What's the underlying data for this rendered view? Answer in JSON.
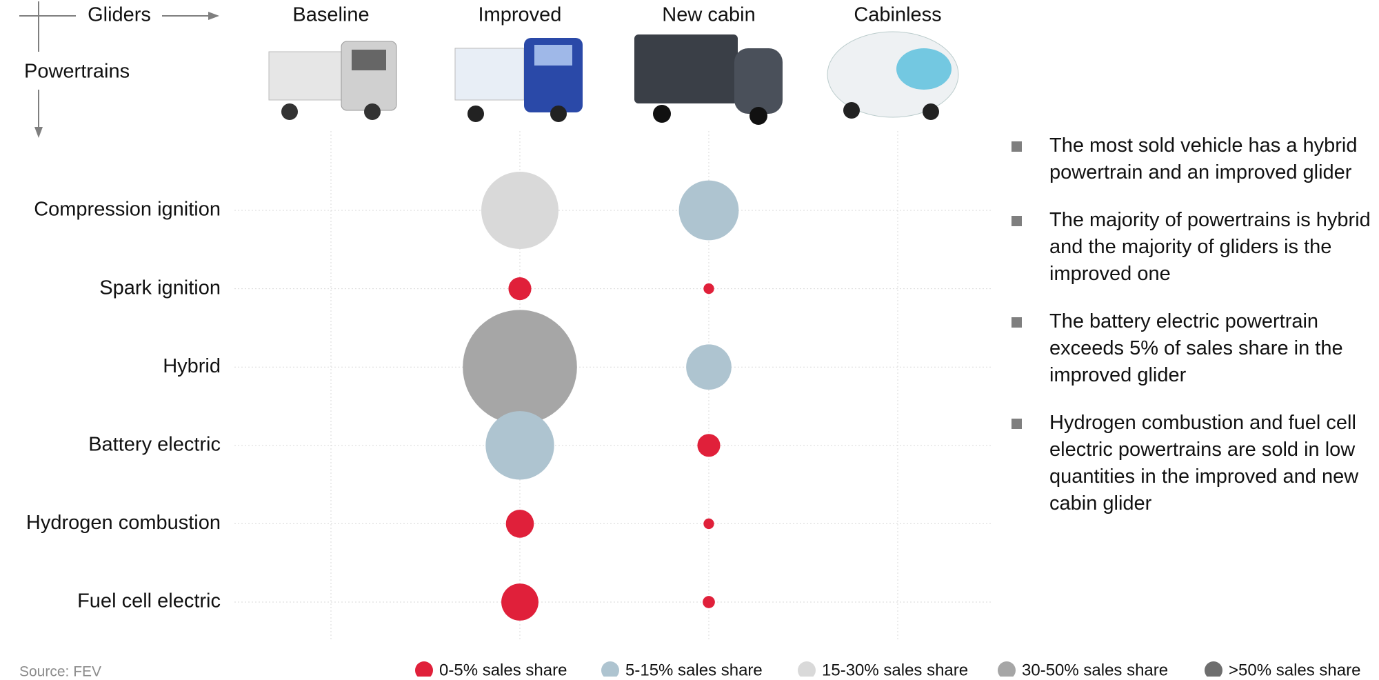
{
  "chart_data": {
    "type": "bubble",
    "x_axis_label": "Gliders",
    "y_axis_label": "Powertrains",
    "x_categories": [
      "Baseline",
      "Improved",
      "New cabin",
      "Cabinless"
    ],
    "y_categories": [
      "Compression ignition",
      "Spark ignition",
      "Hybrid",
      "Battery electric",
      "Hydrogen combustion",
      "Fuel cell electric"
    ],
    "values": [
      [
        null,
        16,
        9.6,
        null
      ],
      [
        null,
        1.4,
        0.3,
        null
      ],
      [
        null,
        35,
        5.5,
        null
      ],
      [
        null,
        12.6,
        1.4,
        null
      ],
      [
        null,
        2.1,
        0.3,
        null
      ],
      [
        null,
        3.7,
        0.4,
        null
      ]
    ],
    "classes": [
      {
        "name": "0-5% sales share",
        "color": "#e0203a",
        "min": 0
      },
      {
        "name": "5-15% sales share",
        "color": "#aec4d0",
        "min": 5
      },
      {
        "name": "15-30% sales share",
        "color": "#d9d9d9",
        "min": 15
      },
      {
        "name": "30-50% sales share",
        "color": "#a6a6a6",
        "min": 30
      },
      {
        "name": ">50% sales share",
        "color": "#6e6e6e",
        "min": 50
      }
    ],
    "grid": true,
    "source": "Source: FEV",
    "notes": [
      "The most sold vehicle has a hybrid powertrain and an improved glider",
      "The majority of powertrains is hybrid and the majority of gliders is the improved one",
      "The battery electric powertrain exceeds 5% of sales share in the improved glider",
      "Hydrogen combustion and fuel cell electric powertrains are sold in low quantities in the improved and new cabin glider"
    ]
  }
}
